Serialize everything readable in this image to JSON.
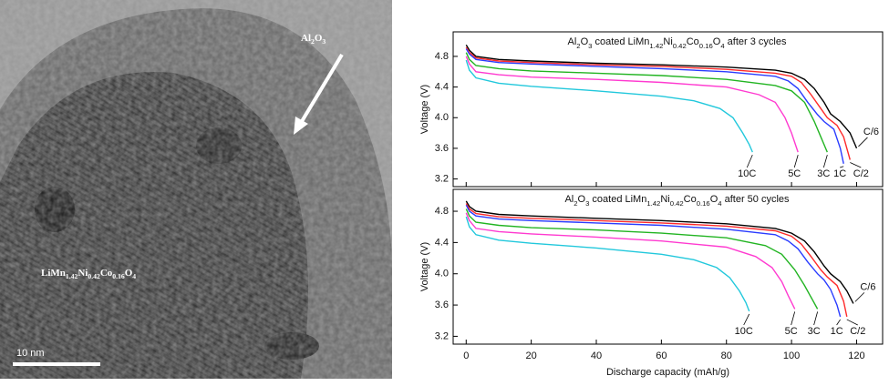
{
  "image": {
    "coating_label": "Al2O3",
    "particle_label": "LiMn1.42Ni0.42Co0.16O4",
    "scale_bar": "10 nm"
  },
  "chart_data": [
    {
      "type": "line",
      "title": "Al2O3 coated LiMn1.42Ni0.42Co0.16O4 after 3 cycles",
      "ylabel": "Voltage (V)",
      "xlim": [
        -4,
        128
      ],
      "ylim": [
        3.1,
        5.12
      ],
      "xticks": [
        0,
        20,
        40,
        60,
        80,
        100,
        120
      ],
      "show_x_tick_labels": false,
      "yticks": [
        3.2,
        3.6,
        {
          "value": 4,
          "label": "4.0"
        },
        4.4,
        4.8
      ],
      "series": [
        {
          "name": "C/6",
          "color": "#000000",
          "x": [
            0,
            1,
            3,
            10,
            20,
            40,
            60,
            80,
            95,
            100,
            104,
            107,
            110,
            112,
            115,
            118,
            120
          ],
          "values": [
            4.95,
            4.88,
            4.8,
            4.76,
            4.74,
            4.71,
            4.69,
            4.66,
            4.62,
            4.58,
            4.5,
            4.38,
            4.2,
            4.05,
            3.95,
            3.8,
            3.6
          ]
        },
        {
          "name": "C/2",
          "color": "#ff2a2a",
          "x": [
            0,
            1,
            3,
            10,
            20,
            40,
            60,
            80,
            95,
            100,
            103,
            106,
            109,
            111,
            114,
            116,
            118
          ],
          "values": [
            4.92,
            4.85,
            4.78,
            4.74,
            4.72,
            4.69,
            4.67,
            4.63,
            4.58,
            4.54,
            4.46,
            4.3,
            4.12,
            4.0,
            3.9,
            3.75,
            3.45
          ]
        },
        {
          "name": "1C",
          "color": "#2a3cff",
          "x": [
            0,
            1,
            3,
            10,
            20,
            40,
            60,
            80,
            95,
            99,
            102,
            105,
            108,
            110,
            113,
            115,
            116
          ],
          "values": [
            4.9,
            4.83,
            4.76,
            4.72,
            4.7,
            4.67,
            4.64,
            4.6,
            4.54,
            4.48,
            4.38,
            4.2,
            4.04,
            3.95,
            3.85,
            3.6,
            3.4
          ]
        },
        {
          "name": "3C",
          "color": "#22b422",
          "x": [
            0,
            1,
            3,
            10,
            20,
            40,
            60,
            80,
            95,
            100,
            104,
            107,
            109,
            111
          ],
          "values": [
            4.85,
            4.76,
            4.68,
            4.64,
            4.61,
            4.58,
            4.55,
            4.5,
            4.42,
            4.35,
            4.2,
            3.95,
            3.75,
            3.55
          ]
        },
        {
          "name": "5C",
          "color": "#ff3ad0",
          "x": [
            0,
            1,
            3,
            10,
            20,
            40,
            60,
            80,
            90,
            95,
            98,
            100,
            102
          ],
          "values": [
            4.8,
            4.7,
            4.6,
            4.56,
            4.53,
            4.5,
            4.46,
            4.4,
            4.3,
            4.2,
            4.0,
            3.8,
            3.55
          ]
        },
        {
          "name": "10C",
          "color": "#22c8dc",
          "x": [
            0,
            1,
            3,
            10,
            20,
            40,
            60,
            70,
            78,
            82,
            85,
            87,
            88
          ],
          "values": [
            4.75,
            4.62,
            4.52,
            4.45,
            4.41,
            4.35,
            4.28,
            4.22,
            4.12,
            4.0,
            3.8,
            3.65,
            3.55
          ]
        }
      ]
    },
    {
      "type": "line",
      "title": "Al2O3 coated LiMn1.42Ni0.42Co0.16O4 after 50 cycles",
      "ylabel": "Voltage (V)",
      "xlabel": "Discharge capacity (mAh/g)",
      "xlim": [
        -4,
        128
      ],
      "ylim": [
        3.1,
        5.08
      ],
      "xticks": [
        0,
        20,
        40,
        60,
        80,
        100,
        120
      ],
      "show_x_tick_labels": true,
      "yticks": [
        3.2,
        3.6,
        {
          "value": 4,
          "label": "4.0"
        },
        4.4,
        4.8
      ],
      "series": [
        {
          "name": "C/6",
          "color": "#000000",
          "x": [
            0,
            1,
            3,
            10,
            20,
            40,
            60,
            80,
            95,
            100,
            104,
            107,
            110,
            112,
            115,
            117,
            119
          ],
          "values": [
            4.93,
            4.86,
            4.8,
            4.76,
            4.74,
            4.71,
            4.68,
            4.64,
            4.58,
            4.52,
            4.42,
            4.28,
            4.1,
            4.0,
            3.9,
            3.78,
            3.62
          ]
        },
        {
          "name": "C/2",
          "color": "#ff2a2a",
          "x": [
            0,
            1,
            3,
            10,
            20,
            40,
            60,
            80,
            95,
            100,
            103,
            106,
            109,
            111,
            114,
            116,
            117
          ],
          "values": [
            4.9,
            4.83,
            4.77,
            4.73,
            4.71,
            4.68,
            4.65,
            4.61,
            4.55,
            4.48,
            4.38,
            4.22,
            4.05,
            3.96,
            3.85,
            3.65,
            3.45
          ]
        },
        {
          "name": "1C",
          "color": "#2a3cff",
          "x": [
            0,
            1,
            3,
            10,
            20,
            40,
            60,
            80,
            95,
            99,
            102,
            105,
            108,
            110,
            112,
            114,
            115
          ],
          "values": [
            4.88,
            4.8,
            4.74,
            4.7,
            4.68,
            4.65,
            4.62,
            4.57,
            4.5,
            4.42,
            4.32,
            4.15,
            4.0,
            3.92,
            3.8,
            3.6,
            3.45
          ]
        },
        {
          "name": "3C",
          "color": "#22b422",
          "x": [
            0,
            1,
            3,
            10,
            20,
            40,
            60,
            80,
            92,
            97,
            101,
            104,
            106,
            108
          ],
          "values": [
            4.83,
            4.74,
            4.66,
            4.62,
            4.59,
            4.56,
            4.52,
            4.46,
            4.36,
            4.25,
            4.05,
            3.85,
            3.7,
            3.55
          ]
        },
        {
          "name": "5C",
          "color": "#ff3ad0",
          "x": [
            0,
            1,
            3,
            10,
            20,
            40,
            60,
            80,
            89,
            94,
            97,
            99,
            101
          ],
          "values": [
            4.78,
            4.68,
            4.58,
            4.54,
            4.51,
            4.47,
            4.42,
            4.34,
            4.22,
            4.08,
            3.9,
            3.72,
            3.55
          ]
        },
        {
          "name": "10C",
          "color": "#22c8dc",
          "x": [
            0,
            1,
            3,
            10,
            20,
            40,
            60,
            70,
            77,
            81,
            84,
            86,
            87
          ],
          "values": [
            4.73,
            4.6,
            4.5,
            4.43,
            4.39,
            4.33,
            4.25,
            4.18,
            4.08,
            3.95,
            3.78,
            3.63,
            3.52
          ]
        }
      ]
    }
  ]
}
